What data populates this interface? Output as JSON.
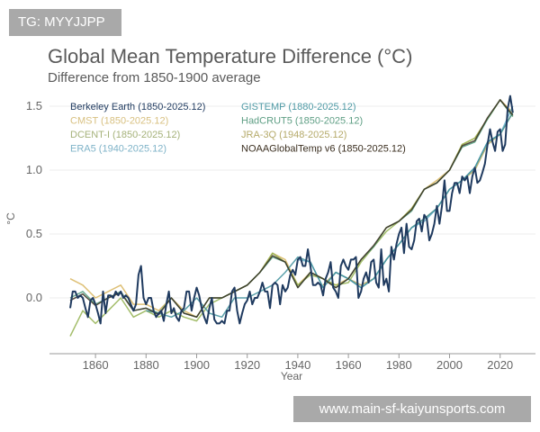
{
  "watermarks": {
    "top_left": "TG: MYYJJPP",
    "bottom_right": "www.main-sf-kaiyunsports.com"
  },
  "chart_data": {
    "type": "line",
    "title": "Global Mean Temperature Difference (°C)",
    "subtitle": "Difference from 1850-1900 average",
    "xlabel": "Year",
    "ylabel": "°C",
    "xlim": [
      1850,
      2025
    ],
    "ylim": [
      -0.35,
      1.6
    ],
    "xticks": [
      1860,
      1880,
      1900,
      1920,
      1940,
      1960,
      1980,
      2000,
      2020
    ],
    "yticks": [
      0.0,
      0.5,
      1.0,
      1.5
    ],
    "ytick_labels": [
      "0.0",
      "0.5",
      "1.0",
      "1.5"
    ],
    "grid": true,
    "legend_position": "top-left",
    "series": [
      {
        "name": "CMST (1850-2025.12)",
        "color": "#d8b55e",
        "start": 1850,
        "step": 5,
        "values": [
          0.15,
          0.1,
          0.0,
          0.05,
          0.1,
          -0.05,
          -0.05,
          -0.1,
          0.0,
          -0.1,
          -0.15,
          0.0,
          0.0,
          0.05,
          0.1,
          0.2,
          0.35,
          0.3,
          0.1,
          0.2,
          0.15,
          0.1,
          0.15,
          0.3,
          0.4,
          0.55,
          0.6,
          0.7,
          0.85,
          0.92,
          1.0,
          1.2,
          1.25,
          1.4,
          1.55,
          1.45
        ]
      },
      {
        "name": "DCENT-I (1850-2025.12)",
        "color": "#93b150",
        "start": 1850,
        "step": 5,
        "values": [
          -0.3,
          -0.1,
          -0.2,
          -0.1,
          0.0,
          -0.15,
          -0.1,
          -0.15,
          -0.1,
          -0.15,
          -0.18,
          -0.05,
          0.0,
          0.05,
          0.1,
          0.2,
          0.35,
          0.28,
          0.1,
          0.18,
          0.15,
          0.1,
          0.12,
          0.28,
          0.4,
          0.52,
          0.6,
          0.7,
          0.85,
          0.9,
          1.0,
          1.2,
          1.25,
          1.4,
          1.55,
          1.42
        ]
      },
      {
        "name": "JRA-3Q (1948-2025.12)",
        "color": "#b3a55a",
        "start": 1950,
        "step": 5,
        "values": [
          0.1,
          0.2,
          0.15,
          0.1,
          0.15,
          0.3,
          0.42,
          0.55,
          0.62,
          0.7,
          0.85,
          0.92,
          1.0,
          1.2,
          1.28,
          1.45
        ]
      },
      {
        "name": "ERA5 (1940-2025.12)",
        "color": "#62acc9",
        "start": 1940,
        "step": 5,
        "values": [
          0.3,
          0.28,
          0.08,
          0.2,
          0.15,
          0.08,
          0.15,
          0.3,
          0.42,
          0.55,
          0.6,
          0.7,
          0.85,
          0.92,
          1.02,
          1.22,
          1.28,
          1.5
        ]
      },
      {
        "name": "GISTEMP (1880-2025.12)",
        "color": "#3f909c",
        "start": 1880,
        "step": 5,
        "values": [
          -0.1,
          -0.12,
          -0.15,
          -0.1,
          0.0,
          -0.12,
          -0.15,
          0.0,
          0.0,
          0.05,
          0.1,
          0.2,
          0.32,
          0.28,
          0.08,
          0.2,
          0.15,
          0.08,
          0.15,
          0.3,
          0.42,
          0.55,
          0.62,
          0.7,
          0.85,
          0.92,
          1.02,
          1.22,
          1.28,
          1.45
        ]
      },
      {
        "name": "HadCRUT5 (1850-2025.12)",
        "color": "#4f9b7c",
        "start": 1850,
        "step": 5,
        "values": [
          0.0,
          0.05,
          -0.05,
          0.0,
          0.05,
          -0.1,
          -0.08,
          -0.12,
          0.0,
          -0.12,
          -0.15,
          0.0,
          0.0,
          0.05,
          0.1,
          0.2,
          0.32,
          0.28,
          0.08,
          0.2,
          0.15,
          0.08,
          0.15,
          0.3,
          0.4,
          0.55,
          0.6,
          0.68,
          0.85,
          0.9,
          1.0,
          1.18,
          1.22,
          1.4,
          1.55,
          1.42
        ]
      },
      {
        "name": "NOAAGlobalTemp v6 (1850-2025.12)",
        "color": "#3b2f20",
        "start": 1850,
        "step": 5,
        "values": [
          -0.02,
          0.03,
          -0.06,
          0.0,
          0.04,
          -0.1,
          -0.08,
          -0.13,
          0.0,
          -0.12,
          -0.15,
          0.0,
          0.0,
          0.05,
          0.1,
          0.2,
          0.33,
          0.28,
          0.08,
          0.2,
          0.15,
          0.08,
          0.15,
          0.3,
          0.41,
          0.55,
          0.6,
          0.69,
          0.85,
          0.9,
          1.0,
          1.19,
          1.23,
          1.41,
          1.55,
          1.43
        ]
      },
      {
        "name": "Berkeley Earth (1850-2025.12)",
        "color": "#1f3a5f",
        "start": 1850,
        "step": 1,
        "values": [
          -0.08,
          0.05,
          0.05,
          0.0,
          0.02,
          0.0,
          -0.08,
          -0.15,
          -0.02,
          0.0,
          -0.05,
          -0.12,
          -0.2,
          0.05,
          -0.12,
          0.02,
          0.02,
          0.0,
          0.05,
          0.02,
          0.05,
          0.0,
          0.02,
          0.0,
          -0.05,
          -0.1,
          -0.05,
          0.18,
          0.25,
          0.0,
          -0.05,
          0.0,
          0.0,
          -0.1,
          -0.15,
          -0.12,
          -0.1,
          -0.18,
          -0.05,
          0.05,
          -0.12,
          -0.08,
          -0.15,
          -0.18,
          -0.1,
          -0.08,
          0.05,
          0.05,
          -0.1,
          0.0,
          0.08,
          0.02,
          -0.08,
          -0.15,
          -0.2,
          -0.08,
          0.0,
          -0.17,
          -0.2,
          -0.2,
          -0.18,
          -0.2,
          -0.1,
          -0.1,
          0.05,
          0.08,
          -0.1,
          -0.2,
          -0.12,
          -0.05,
          -0.02,
          0.05,
          -0.05,
          0.0,
          0.0,
          0.05,
          0.12,
          0.05,
          0.05,
          -0.08,
          0.1,
          0.12,
          0.1,
          -0.05,
          0.1,
          0.05,
          0.08,
          0.18,
          0.22,
          0.18,
          0.3,
          0.32,
          0.25,
          0.25,
          0.38,
          0.25,
          0.1,
          0.1,
          0.12,
          0.1,
          0.02,
          0.15,
          0.2,
          0.28,
          0.08,
          0.05,
          0.0,
          0.25,
          0.3,
          0.25,
          0.22,
          0.3,
          0.3,
          0.32,
          0.0,
          0.05,
          0.15,
          0.2,
          0.12,
          0.28,
          0.3,
          0.12,
          0.08,
          0.38,
          0.1,
          0.15,
          0.05,
          0.4,
          0.3,
          0.42,
          0.5,
          0.55,
          0.35,
          0.58,
          0.4,
          0.38,
          0.45,
          0.6,
          0.62,
          0.52,
          0.65,
          0.62,
          0.45,
          0.5,
          0.58,
          0.72,
          0.58,
          0.72,
          0.92,
          0.68,
          0.68,
          0.82,
          0.9,
          0.9,
          0.82,
          0.95,
          0.92,
          0.95,
          0.82,
          0.95,
          1.02,
          0.9,
          0.92,
          0.98,
          1.05,
          1.2,
          1.32,
          1.22,
          1.15,
          1.3,
          1.32,
          1.15,
          1.2,
          1.48,
          1.58,
          1.45
        ]
      }
    ],
    "legend": [
      {
        "label": "Berkeley Earth (1850-2025.12)",
        "color": "#1f3a5f"
      },
      {
        "label": "CMST (1850-2025.12)",
        "color": "#d8c080"
      },
      {
        "label": "DCENT-I (1850-2025.12)",
        "color": "#a5b27a"
      },
      {
        "label": "ERA5 (1940-2025.12)",
        "color": "#7fb3c8"
      },
      {
        "label": "GISTEMP (1880-2025.12)",
        "color": "#4f9aa5"
      },
      {
        "label": "HadCRUT5 (1850-2025.12)",
        "color": "#5f9f85"
      },
      {
        "label": "JRA-3Q (1948-2025.12)",
        "color": "#b5aa6a"
      },
      {
        "label": "NOAAGlobalTemp v6 (1850-2025.12)",
        "color": "#3b2f20"
      }
    ]
  }
}
